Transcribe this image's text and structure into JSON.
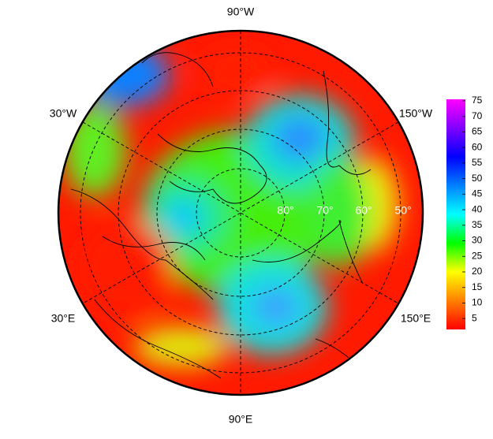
{
  "map": {
    "longitude_labels": [
      "90°W",
      "30°W",
      "150°W",
      "30°E",
      "150°E",
      "90°E"
    ],
    "latitude_labels": [
      "80°",
      "70°",
      "60°",
      "50°"
    ],
    "colorbar": {
      "lim": [
        1.5,
        75.5
      ],
      "ticks": [
        5,
        10,
        15,
        20,
        25,
        30,
        35,
        40,
        45,
        50,
        55,
        60,
        65,
        70,
        75
      ],
      "colors": [
        "#ff0000",
        "#ff8000",
        "#ffff00",
        "#00ff00",
        "#00ffff",
        "#0080ff",
        "#0000ff",
        "#8000ff",
        "#ff00ff"
      ]
    }
  }
}
